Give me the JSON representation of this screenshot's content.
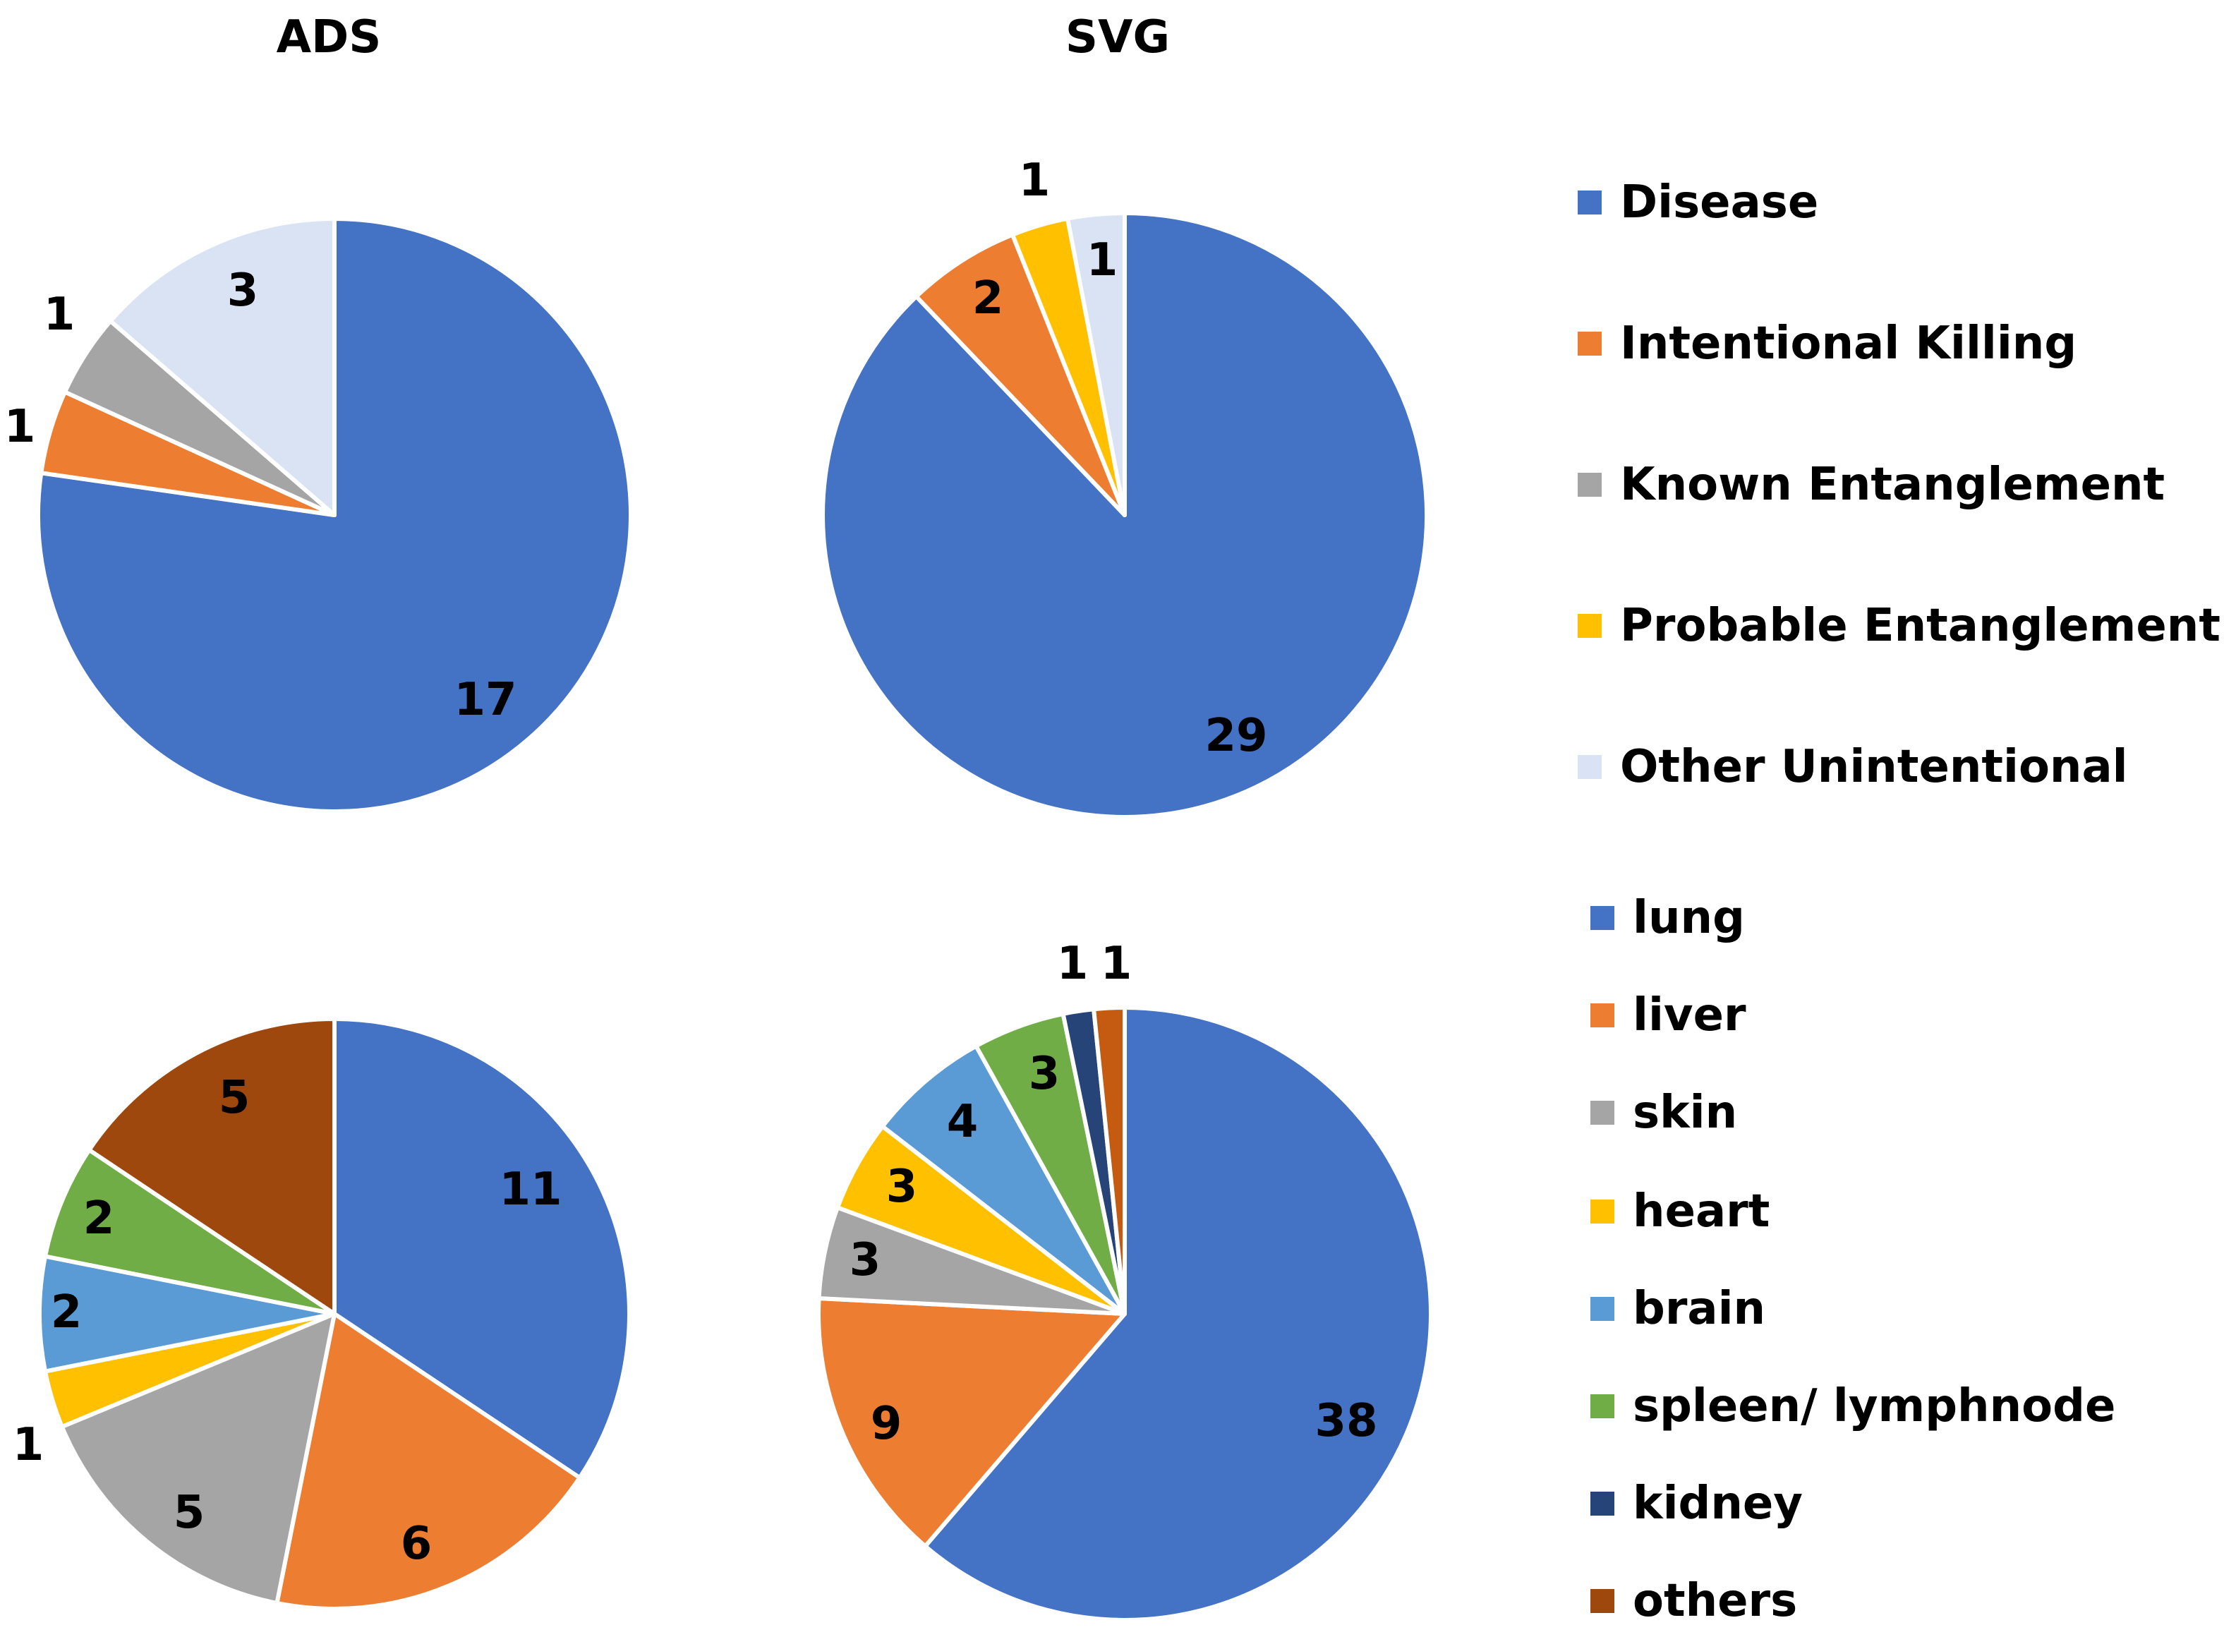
{
  "column_titles": [
    "ADS",
    "SVG"
  ],
  "chart_data": [
    {
      "type": "pie",
      "title": "ADS",
      "group": "cause",
      "labels": [
        "Disease",
        "Intentional Killing",
        "Known Entanglement",
        "Probable Entanglement",
        "Other Unintentional"
      ],
      "values": [
        17,
        1,
        1,
        0,
        3
      ],
      "data_labels": [
        "17",
        "1",
        "1",
        "",
        "3"
      ],
      "colors": [
        "#4472C4",
        "#ED7D31",
        "#A5A5A5",
        "#FFC000",
        "#DAE3F3"
      ]
    },
    {
      "type": "pie",
      "title": "SVG",
      "group": "cause",
      "labels": [
        "Disease",
        "Intentional Killing",
        "Known Entanglement",
        "Probable Entanglement",
        "Other Unintentional"
      ],
      "values": [
        29,
        2,
        0,
        1,
        1
      ],
      "data_labels": [
        "29",
        "2",
        "",
        "1",
        "1"
      ],
      "colors": [
        "#4472C4",
        "#ED7D31",
        "#A5A5A5",
        "#FFC000",
        "#DAE3F3"
      ]
    },
    {
      "type": "pie",
      "title": "ADS",
      "group": "organ",
      "labels": [
        "lung",
        "liver",
        "skin",
        "heart",
        "brain",
        "spleen/ lymphnode",
        "kidney",
        "others"
      ],
      "values": [
        11,
        6,
        5,
        1,
        2,
        2,
        0,
        5
      ],
      "data_labels": [
        "11",
        "6",
        "5",
        "1",
        "2",
        "2",
        "",
        "5"
      ],
      "colors": [
        "#4472C4",
        "#ED7D31",
        "#A5A5A5",
        "#FFC000",
        "#5B9BD5",
        "#70AD47",
        "#264478",
        "#9E480E"
      ]
    },
    {
      "type": "pie",
      "title": "SVG",
      "group": "organ",
      "labels": [
        "lung",
        "liver",
        "skin",
        "heart",
        "brain",
        "spleen/ lymphnode",
        "kidney",
        "others"
      ],
      "values": [
        38,
        9,
        3,
        3,
        4,
        3,
        1,
        1
      ],
      "data_labels": [
        "38",
        "9",
        "3",
        "3",
        "4",
        "3",
        "1",
        "1"
      ],
      "colors": [
        "#4472C4",
        "#ED7D31",
        "#A5A5A5",
        "#FFC000",
        "#5B9BD5",
        "#70AD47",
        "#264478",
        "#C55A11"
      ]
    }
  ],
  "legends": {
    "cause": [
      {
        "label": "Disease",
        "color": "#4472C4"
      },
      {
        "label": "Intentional Killing",
        "color": "#ED7D31"
      },
      {
        "label": "Known Entanglement",
        "color": "#A5A5A5"
      },
      {
        "label": "Probable Entanglement",
        "color": "#FFC000"
      },
      {
        "label": "Other Unintentional",
        "color": "#DAE3F3"
      }
    ],
    "organ": [
      {
        "label": "lung",
        "color": "#4472C4"
      },
      {
        "label": "liver",
        "color": "#ED7D31"
      },
      {
        "label": "skin",
        "color": "#A5A5A5"
      },
      {
        "label": "heart",
        "color": "#FFC000"
      },
      {
        "label": "brain",
        "color": "#5B9BD5"
      },
      {
        "label": "spleen/ lymphnode",
        "color": "#70AD47"
      },
      {
        "label": "kidney",
        "color": "#264478"
      },
      {
        "label": "others",
        "color": "#9E480E"
      }
    ]
  }
}
